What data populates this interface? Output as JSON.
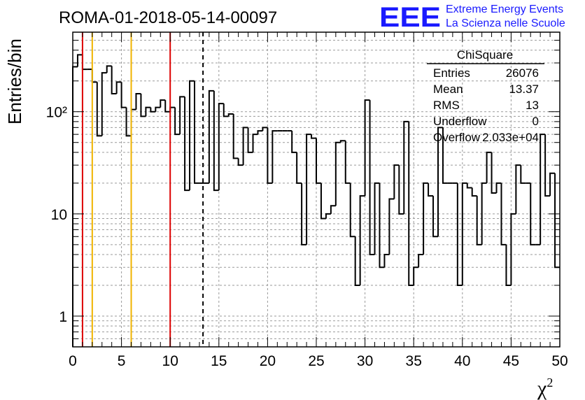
{
  "header": {
    "title": "ROMA-01-2018-05-14-00097",
    "logo_mark": "EEE",
    "logo_line1": "Extreme Energy Events",
    "logo_line2": "La Scienza nelle Scuole",
    "logo_color": "#1a1aff"
  },
  "stats_box": {
    "title": "ChiSquare",
    "rows": [
      {
        "label": "Entries",
        "value": "26076"
      },
      {
        "label": "Mean",
        "value": "13.37"
      },
      {
        "label": "RMS",
        "value": "13"
      },
      {
        "label": "Underflow",
        "value": "0"
      },
      {
        "label": "Overflow",
        "value": "2.033e+04"
      }
    ]
  },
  "chart_data": {
    "type": "histogram",
    "xlabel": "χ",
    "xlabel_superscript": "2",
    "ylabel": "Entries/bin",
    "xlim": [
      0,
      50
    ],
    "ylim": [
      0.5,
      600
    ],
    "y_scale": "log",
    "grid": true,
    "bin_width": 0.5,
    "x_ticks": [
      "0",
      "5",
      "10",
      "15",
      "20",
      "25",
      "30",
      "35",
      "40",
      "45",
      "50"
    ],
    "y_tick_values": [
      1,
      10,
      100
    ],
    "y_tick_labels": [
      "1",
      "10",
      "10²"
    ],
    "values": [
      275,
      360,
      260,
      260,
      195,
      58,
      240,
      280,
      150,
      195,
      110,
      58,
      105,
      150,
      90,
      110,
      100,
      110,
      130,
      100,
      110,
      60,
      140,
      17,
      200,
      20,
      20,
      20,
      160,
      17,
      120,
      90,
      95,
      35,
      30,
      70,
      40,
      60,
      65,
      70,
      20,
      65,
      65,
      65,
      65,
      40,
      20,
      5,
      60,
      55,
      20,
      9,
      10,
      12,
      50,
      52,
      20,
      6,
      2,
      15,
      130,
      4,
      20,
      3,
      4,
      14,
      30,
      10,
      80,
      2,
      3,
      4,
      20,
      15,
      6,
      70,
      20,
      20,
      20,
      2,
      20,
      18,
      15,
      5,
      20,
      40,
      16,
      20,
      5,
      2,
      10,
      30,
      20,
      20,
      5,
      5,
      60,
      15,
      25,
      3
    ],
    "reference_lines": [
      {
        "x": 1,
        "color": "#dd0000",
        "style": "solid"
      },
      {
        "x": 2,
        "color": "#f0b400",
        "style": "solid"
      },
      {
        "x": 6,
        "color": "#f0b400",
        "style": "solid"
      },
      {
        "x": 10,
        "color": "#dd0000",
        "style": "solid"
      },
      {
        "x": 13.37,
        "color": "#000000",
        "style": "dashed"
      }
    ]
  }
}
